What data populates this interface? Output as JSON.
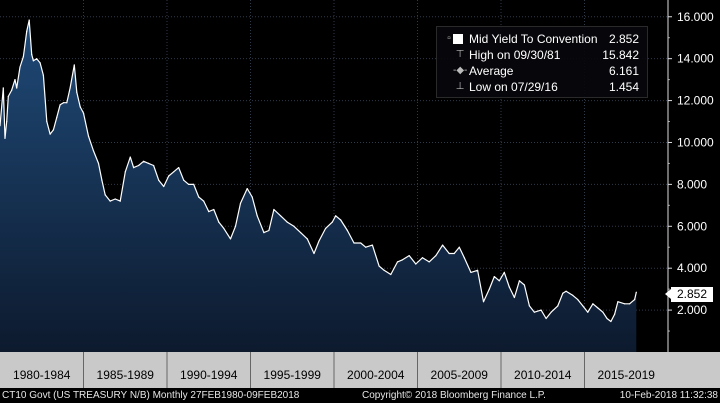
{
  "chart_data": {
    "type": "area",
    "x_axis_labels": [
      "1980-1984",
      "1985-1989",
      "1990-1994",
      "1995-1999",
      "2000-2004",
      "2005-2009",
      "2010-2014",
      "2015-2019"
    ],
    "y_ticks": [
      "2.000",
      "4.000",
      "6.000",
      "8.000",
      "10.000",
      "12.000",
      "14.000",
      "16.000"
    ],
    "ylim": [
      0,
      16.8
    ],
    "grid": true,
    "legend_position": "top-right",
    "last_value_label": "2.852",
    "series": [
      {
        "name": "Mid Yield To Convention",
        "x": [
          1980.0,
          1980.2,
          1980.3,
          1980.4,
          1980.5,
          1980.7,
          1980.9,
          1981.0,
          1981.2,
          1981.4,
          1981.6,
          1981.75,
          1981.9,
          1982.0,
          1982.2,
          1982.4,
          1982.6,
          1982.8,
          1983.0,
          1983.2,
          1983.4,
          1983.6,
          1983.8,
          1984.0,
          1984.2,
          1984.45,
          1984.6,
          1984.8,
          1985.0,
          1985.3,
          1985.6,
          1985.9,
          1986.1,
          1986.3,
          1986.6,
          1986.9,
          1987.2,
          1987.5,
          1987.8,
          1988.0,
          1988.3,
          1988.6,
          1988.9,
          1989.2,
          1989.5,
          1989.8,
          1990.1,
          1990.4,
          1990.7,
          1991.0,
          1991.3,
          1991.6,
          1991.9,
          1992.2,
          1992.5,
          1992.8,
          1993.1,
          1993.4,
          1993.8,
          1994.1,
          1994.4,
          1994.8,
          1995.1,
          1995.4,
          1995.8,
          1996.1,
          1996.4,
          1996.8,
          1997.2,
          1997.6,
          1998.0,
          1998.4,
          1998.8,
          1999.1,
          1999.5,
          1999.9,
          2000.1,
          2000.4,
          2000.8,
          2001.2,
          2001.6,
          2001.9,
          2002.3,
          2002.7,
          2003.0,
          2003.4,
          2003.8,
          2004.1,
          2004.5,
          2004.9,
          2005.3,
          2005.7,
          2006.1,
          2006.5,
          2006.9,
          2007.2,
          2007.5,
          2007.8,
          2008.2,
          2008.6,
          2008.95,
          2009.3,
          2009.6,
          2009.9,
          2010.2,
          2010.5,
          2010.8,
          2011.1,
          2011.4,
          2011.7,
          2012.0,
          2012.4,
          2012.7,
          2013.0,
          2013.4,
          2013.7,
          2013.9,
          2014.3,
          2014.6,
          2014.9,
          2015.2,
          2015.5,
          2015.8,
          2016.1,
          2016.35,
          2016.58,
          2016.8,
          2017.0,
          2017.4,
          2017.7,
          2018.0,
          2018.1
        ],
        "values": [
          10.8,
          12.6,
          10.2,
          11.0,
          12.2,
          12.5,
          13.0,
          12.6,
          13.6,
          14.1,
          15.3,
          15.842,
          14.2,
          13.9,
          14.0,
          13.8,
          13.2,
          11.0,
          10.4,
          10.6,
          11.2,
          11.8,
          11.9,
          11.9,
          12.6,
          13.7,
          12.4,
          11.7,
          11.4,
          10.3,
          9.6,
          9.0,
          8.2,
          7.5,
          7.2,
          7.3,
          7.2,
          8.6,
          9.3,
          8.8,
          8.9,
          9.1,
          9.0,
          8.9,
          8.2,
          7.9,
          8.4,
          8.6,
          8.8,
          8.2,
          8.0,
          8.0,
          7.4,
          7.2,
          6.7,
          6.8,
          6.2,
          5.9,
          5.4,
          6.0,
          7.1,
          7.8,
          7.4,
          6.5,
          5.7,
          5.8,
          6.8,
          6.5,
          6.2,
          6.0,
          5.7,
          5.4,
          4.7,
          5.3,
          5.9,
          6.2,
          6.5,
          6.3,
          5.8,
          5.2,
          5.2,
          5.0,
          5.1,
          4.1,
          3.9,
          3.7,
          4.3,
          4.4,
          4.6,
          4.2,
          4.5,
          4.3,
          4.6,
          5.1,
          4.7,
          4.7,
          5.0,
          4.5,
          3.8,
          3.9,
          2.4,
          3.0,
          3.6,
          3.4,
          3.8,
          3.1,
          2.6,
          3.4,
          3.2,
          2.2,
          1.9,
          2.0,
          1.6,
          1.9,
          2.2,
          2.8,
          2.9,
          2.7,
          2.5,
          2.2,
          1.9,
          2.3,
          2.1,
          1.9,
          1.6,
          1.454,
          1.8,
          2.4,
          2.3,
          2.3,
          2.5,
          2.852
        ]
      }
    ],
    "legend": [
      {
        "label": "Mid Yield To Convention",
        "value": "2.852",
        "marker": "square-icon"
      },
      {
        "label": "High on 09/30/81",
        "value": "15.842",
        "marker": "high-marker-icon"
      },
      {
        "label": "Average",
        "value": "6.161",
        "marker": "average-marker-icon"
      },
      {
        "label": "Low on 07/29/16",
        "value": "1.454",
        "marker": "low-marker-icon"
      }
    ]
  },
  "colors": {
    "background": "#000000",
    "area_fill_top": "#1f4a78",
    "area_fill_bottom": "#0d1a2e",
    "line": "#ffffff",
    "grid": "#2f3a4a",
    "axis_band": "#c9c9c9"
  },
  "footer": {
    "left": "CT10 Govt (US TREASURY N/B)  Monthly 27FEB1980-09FEB2018",
    "center": "Copyright© 2018 Bloomberg Finance L.P.",
    "right": "10-Feb-2018 11:32:38"
  }
}
